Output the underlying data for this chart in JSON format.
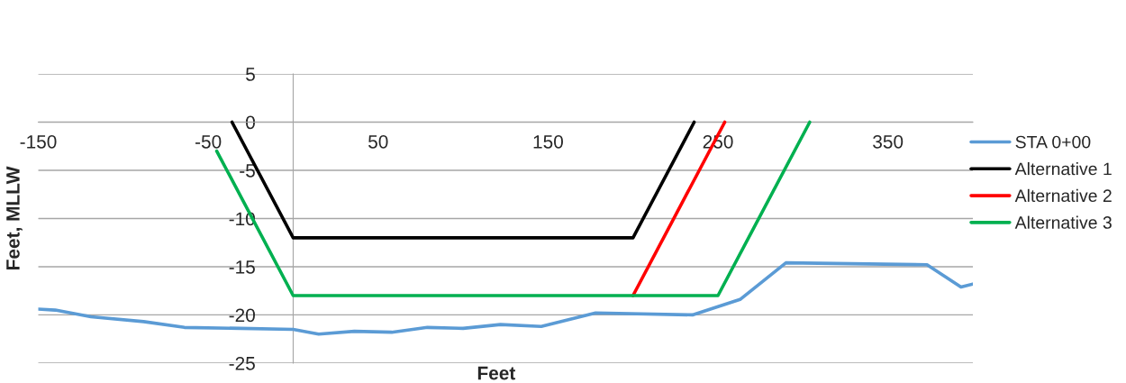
{
  "chart_data": {
    "type": "line",
    "xlabel": "Feet",
    "ylabel": "Feet, MLLW",
    "xlim": [
      -150,
      400
    ],
    "xticks": [
      -150,
      -50,
      50,
      150,
      250,
      350
    ],
    "ylim": [
      -25,
      5
    ],
    "yticks": [
      -25,
      -20,
      -15,
      -10,
      -5,
      0,
      5
    ],
    "grid": "y",
    "legend": "right",
    "marker": "none",
    "line_style": "solid",
    "series": [
      {
        "name": "STA 0+00",
        "color": "#5b9bd5",
        "x": [
          -150,
          -140,
          -119,
          -88,
          -64,
          -31,
          0,
          15,
          36,
          58,
          79,
          100,
          122,
          146,
          178,
          235,
          263,
          290,
          373,
          393,
          400
        ],
        "values": [
          -19.4,
          -19.5,
          -20.2,
          -20.7,
          -21.3,
          -21.4,
          -21.5,
          -22.0,
          -21.7,
          -21.8,
          -21.3,
          -21.4,
          -21.0,
          -21.2,
          -19.8,
          -20.0,
          -18.4,
          -14.6,
          -14.8,
          -17.1,
          -16.8
        ]
      },
      {
        "name": "Alternative 1",
        "color": "#000000",
        "x": [
          -36,
          0,
          200,
          236
        ],
        "values": [
          0,
          -12,
          -12,
          0
        ]
      },
      {
        "name": "Alternative 2",
        "color": "#ff0000",
        "x": [
          200,
          254
        ],
        "values": [
          -18,
          0
        ]
      },
      {
        "name": "Alternative 3",
        "color": "#00b050",
        "x": [
          -45,
          0,
          250,
          304
        ],
        "values": [
          -3,
          -18,
          -18,
          0
        ]
      }
    ]
  }
}
